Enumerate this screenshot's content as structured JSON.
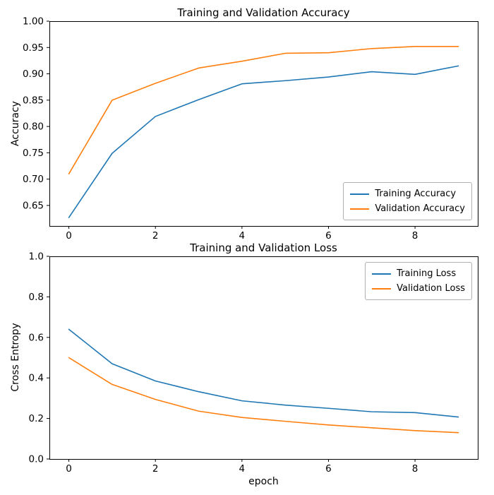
{
  "figure": {
    "background": "#ffffff"
  },
  "chart_data": [
    {
      "type": "line",
      "title": "Training and Validation Accuracy",
      "xlabel": "",
      "ylabel": "Accuracy",
      "x": [
        0,
        1,
        2,
        3,
        4,
        5,
        6,
        7,
        8,
        9
      ],
      "series": [
        {
          "name": "Training Accuracy",
          "color": "#1f77b4",
          "values": [
            0.627,
            0.749,
            0.819,
            0.851,
            0.881,
            0.887,
            0.894,
            0.904,
            0.899,
            0.915
          ]
        },
        {
          "name": "Validation Accuracy",
          "color": "#ff7f0e",
          "values": [
            0.71,
            0.85,
            0.882,
            0.911,
            0.924,
            0.939,
            0.94,
            0.948,
            0.952,
            0.952
          ]
        }
      ],
      "xlim": [
        -0.45,
        9.45
      ],
      "ylim": [
        0.611,
        1.0
      ],
      "xticks": {
        "values": [
          0,
          2,
          4,
          6,
          8
        ],
        "labels": [
          "0",
          "2",
          "4",
          "6",
          "8"
        ]
      },
      "yticks": {
        "values": [
          0.65,
          0.7,
          0.75,
          0.8,
          0.85,
          0.9,
          0.95,
          1.0
        ],
        "labels": [
          "0.65",
          "0.70",
          "0.75",
          "0.80",
          "0.85",
          "0.90",
          "0.95",
          "1.00"
        ]
      },
      "grid": false,
      "legend": {
        "position": "lower right",
        "entries": [
          "Training Accuracy",
          "Validation Accuracy"
        ]
      }
    },
    {
      "type": "line",
      "title": "Training and Validation Loss",
      "xlabel": "epoch",
      "ylabel": "Cross Entropy",
      "x": [
        0,
        1,
        2,
        3,
        4,
        5,
        6,
        7,
        8,
        9
      ],
      "series": [
        {
          "name": "Training Loss",
          "color": "#1f77b4",
          "values": [
            0.64,
            0.47,
            0.385,
            0.332,
            0.287,
            0.266,
            0.25,
            0.233,
            0.229,
            0.207
          ]
        },
        {
          "name": "Validation Loss",
          "color": "#ff7f0e",
          "values": [
            0.5,
            0.368,
            0.294,
            0.236,
            0.205,
            0.186,
            0.168,
            0.154,
            0.14,
            0.13
          ]
        }
      ],
      "xlim": [
        -0.45,
        9.45
      ],
      "ylim": [
        0.0,
        1.0
      ],
      "xticks": {
        "values": [
          0,
          2,
          4,
          6,
          8
        ],
        "labels": [
          "0",
          "2",
          "4",
          "6",
          "8"
        ]
      },
      "yticks": {
        "values": [
          0.0,
          0.2,
          0.4,
          0.6,
          0.8,
          1.0
        ],
        "labels": [
          "0.0",
          "0.2",
          "0.4",
          "0.6",
          "0.8",
          "1.0"
        ]
      },
      "grid": false,
      "legend": {
        "position": "upper right",
        "entries": [
          "Training Loss",
          "Validation Loss"
        ]
      }
    }
  ]
}
